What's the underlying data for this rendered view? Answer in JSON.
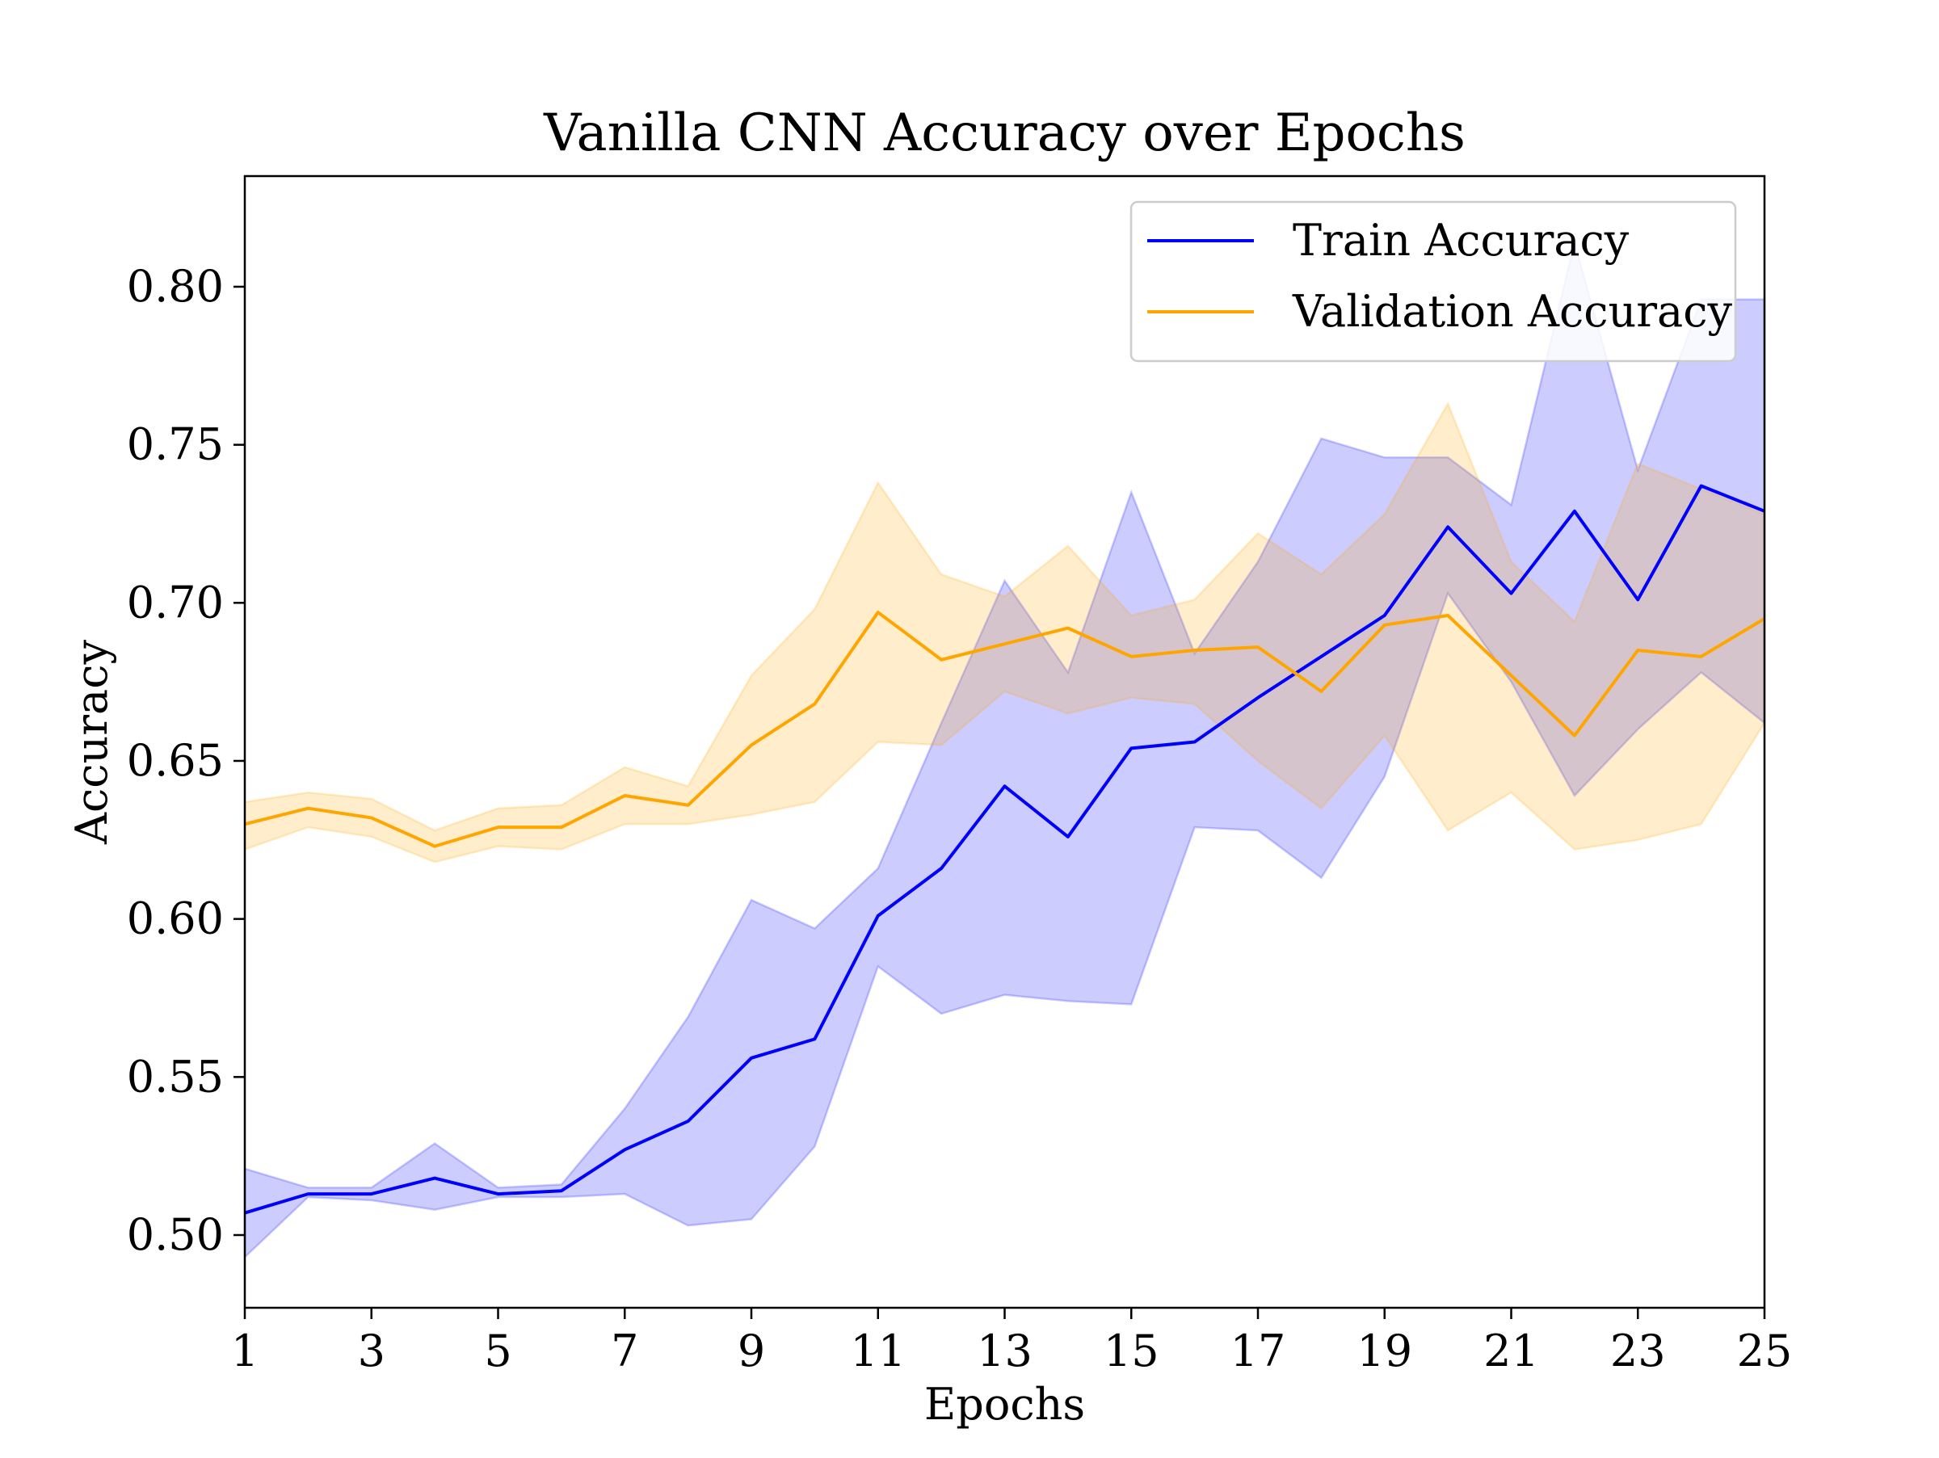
{
  "chart_data": {
    "type": "line",
    "title": "Vanilla CNN Accuracy over Epochs",
    "xlabel": "Epochs",
    "ylabel": "Accuracy",
    "x": [
      1,
      2,
      3,
      4,
      5,
      6,
      7,
      8,
      9,
      10,
      11,
      12,
      13,
      14,
      15,
      16,
      17,
      18,
      19,
      20,
      21,
      22,
      23,
      24,
      25
    ],
    "xticks": [
      1,
      3,
      5,
      7,
      9,
      11,
      13,
      15,
      17,
      19,
      21,
      23,
      25
    ],
    "xlim": [
      1,
      25
    ],
    "yticks": [
      0.5,
      0.55,
      0.6,
      0.65,
      0.7,
      0.75,
      0.8
    ],
    "ytick_labels": [
      "0.50",
      "0.55",
      "0.60",
      "0.65",
      "0.70",
      "0.75",
      "0.80"
    ],
    "ylim": [
      0.477,
      0.835
    ],
    "legend_position": "top-right",
    "series": [
      {
        "name": "Train Accuracy",
        "color": "#0000ff",
        "band_color": "#0000ff",
        "values": [
          0.507,
          0.513,
          0.513,
          0.518,
          0.513,
          0.514,
          0.527,
          0.536,
          0.556,
          0.562,
          0.601,
          0.616,
          0.642,
          0.626,
          0.654,
          0.656,
          0.67,
          0.683,
          0.696,
          0.724,
          0.703,
          0.729,
          0.701,
          0.737,
          0.729
        ],
        "upper": [
          0.521,
          0.515,
          0.515,
          0.529,
          0.515,
          0.516,
          0.54,
          0.569,
          0.606,
          0.597,
          0.616,
          0.662,
          0.707,
          0.678,
          0.735,
          0.684,
          0.713,
          0.752,
          0.746,
          0.746,
          0.731,
          0.814,
          0.742,
          0.796,
          0.796
        ],
        "lower": [
          0.493,
          0.512,
          0.511,
          0.508,
          0.512,
          0.512,
          0.513,
          0.503,
          0.505,
          0.528,
          0.585,
          0.57,
          0.576,
          0.574,
          0.573,
          0.629,
          0.628,
          0.613,
          0.645,
          0.703,
          0.675,
          0.639,
          0.66,
          0.678,
          0.662
        ]
      },
      {
        "name": "Validation Accuracy",
        "color": "#ffa500",
        "band_color": "#ffa500",
        "values": [
          0.63,
          0.635,
          0.632,
          0.623,
          0.629,
          0.629,
          0.639,
          0.636,
          0.655,
          0.668,
          0.697,
          0.682,
          0.687,
          0.692,
          0.683,
          0.685,
          0.686,
          0.672,
          0.693,
          0.696,
          0.677,
          0.658,
          0.685,
          0.683,
          0.695
        ],
        "upper": [
          0.637,
          0.64,
          0.638,
          0.628,
          0.635,
          0.636,
          0.648,
          0.642,
          0.677,
          0.698,
          0.738,
          0.709,
          0.702,
          0.718,
          0.696,
          0.701,
          0.722,
          0.709,
          0.728,
          0.763,
          0.713,
          0.694,
          0.744,
          0.736,
          0.728
        ],
        "lower": [
          0.622,
          0.629,
          0.626,
          0.618,
          0.623,
          0.622,
          0.63,
          0.63,
          0.633,
          0.637,
          0.656,
          0.655,
          0.672,
          0.665,
          0.67,
          0.668,
          0.65,
          0.635,
          0.658,
          0.628,
          0.64,
          0.622,
          0.625,
          0.63,
          0.662
        ]
      }
    ]
  }
}
